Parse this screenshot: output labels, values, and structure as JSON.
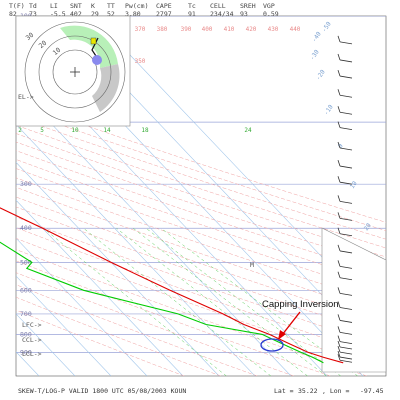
{
  "header": {
    "labels": [
      "T(F)",
      "Td",
      "LI",
      "SNT",
      "K",
      "TT",
      "Pw(cm)",
      "CAPE",
      "Tc",
      "CELL",
      "SREH",
      "VGP"
    ],
    "values": [
      "82",
      "73",
      "-5.5",
      "402",
      "29",
      "52",
      "3.80",
      "2797",
      "91",
      "234/34",
      "93",
      "0.59"
    ]
  },
  "chart_data": {
    "type": "line",
    "title": "SKEW-T/LOG-P VALID 1800 UTC 05/08/2003",
    "station": "KOUN",
    "x_kind": "skewed temperature",
    "y_axis": "pressure (hPa), log scale, decreasing upward",
    "pressure_levels": [
      100,
      200,
      300,
      400,
      500,
      600,
      700,
      800,
      900
    ],
    "pressure_labels": [
      "100",
      "200",
      "300",
      "400",
      "500",
      "600",
      "700",
      "800",
      "900"
    ],
    "mixing_ratio_labels": [
      "2",
      "5",
      "10",
      "14",
      "18",
      "24"
    ],
    "potential_temp_labels": [
      "370",
      "380",
      "390",
      "400",
      "410",
      "420",
      "430",
      "440",
      "350"
    ],
    "isotherm_labels": [
      "30",
      "20",
      "10",
      "0",
      "-10",
      "-20",
      "-30",
      "-40",
      "-50"
    ],
    "level_markers": [
      "LFC->",
      "CCL->",
      "LCL->"
    ],
    "el_marker": "EL->",
    "freezing_marker": "M",
    "hodograph_ring_labels": [
      "30",
      "20",
      "10"
    ],
    "series": [
      {
        "name": "",
        "color": "#e00000",
        "points": [
          [
            963,
            28
          ],
          [
            930,
            24
          ],
          [
            900,
            21
          ],
          [
            850,
            18
          ],
          [
            800,
            15
          ],
          [
            750,
            10.5
          ],
          [
            700,
            7.5
          ],
          [
            600,
            -1
          ],
          [
            500,
            -10
          ],
          [
            400,
            -20
          ],
          [
            300,
            -34
          ],
          [
            250,
            -44
          ],
          [
            200,
            -55
          ],
          [
            150,
            -60
          ],
          [
            120,
            -58
          ],
          [
            100,
            -62
          ]
        ]
      },
      {
        "name": "",
        "color": "#00cc00",
        "points": [
          [
            963,
            22.5
          ],
          [
            930,
            21
          ],
          [
            900,
            19
          ],
          [
            850,
            16
          ],
          [
            800,
            13
          ],
          [
            750,
            0
          ],
          [
            700,
            -5
          ],
          [
            600,
            -25
          ],
          [
            520,
            -35
          ],
          [
            500,
            -32
          ],
          [
            400,
            -38
          ],
          [
            300,
            -52
          ],
          [
            250,
            -60
          ],
          [
            200,
            -66
          ]
        ]
      }
    ],
    "annotation": "Capping Inversion",
    "grid": true
  },
  "footer": {
    "left": "SKEW-T/LOG-P VALID 1800 UTC 05/08/2003  KOUN",
    "lat_label": "Lat =",
    "lat_value": "35.22",
    "lon_label": ", Lon =",
    "lon_value": "-97.45"
  },
  "colors": {
    "temperature": "#e00000",
    "dewpoint": "#00cc00",
    "isobar": "#9aa4d8",
    "isotherm": "#9ec4ea",
    "dry_adiabat": "#f0a0a0",
    "mixing_ratio": "#55cc55",
    "annotation_arrow": "#e00000",
    "ellipse": "#2a3ad0"
  }
}
